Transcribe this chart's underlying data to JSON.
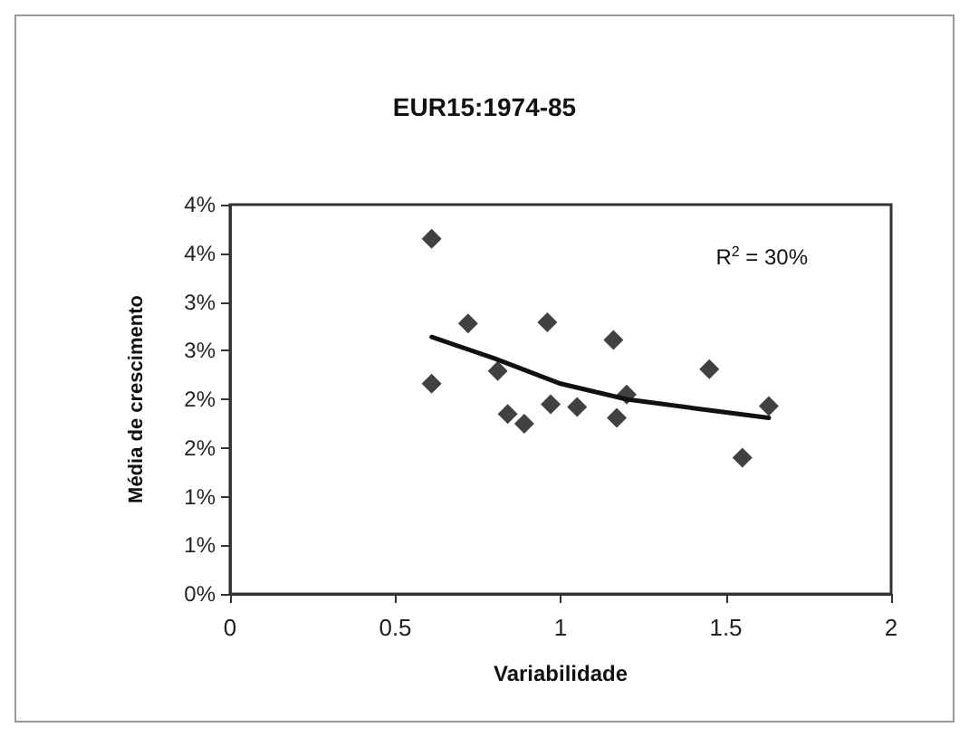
{
  "chart_data": {
    "type": "scatter",
    "title": "EUR15:1974-85",
    "xlabel": "Variabilidade",
    "ylabel": "Média de crescimento",
    "xlim": [
      0,
      2
    ],
    "xticks": [
      0,
      0.5,
      1,
      1.5,
      2
    ],
    "ylim": [
      0,
      4
    ],
    "yticks": [
      {
        "value": 0,
        "label": "0%"
      },
      {
        "value": 0.5,
        "label": "1%"
      },
      {
        "value": 1,
        "label": "1%"
      },
      {
        "value": 1.5,
        "label": "2%"
      },
      {
        "value": 2,
        "label": "2%"
      },
      {
        "value": 2.5,
        "label": "3%"
      },
      {
        "value": 3,
        "label": "3%"
      },
      {
        "value": 3.5,
        "label": "4%"
      },
      {
        "value": 4,
        "label": "4%"
      }
    ],
    "grid": false,
    "marker": "diamond",
    "annotations": [
      "R$^{2}$ = 30%"
    ],
    "series": [
      {
        "type": "scatter",
        "color": "#111111",
        "x": [
          0.61,
          0.61,
          0.72,
          0.81,
          0.84,
          0.89,
          0.96,
          0.97,
          1.05,
          1.16,
          1.17,
          1.2,
          1.45,
          1.55,
          1.63
        ],
        "values": [
          3.65,
          2.16,
          2.78,
          2.29,
          1.85,
          1.75,
          2.79,
          1.95,
          1.92,
          2.61,
          1.81,
          2.05,
          2.31,
          1.4,
          1.93
        ]
      },
      {
        "type": "line",
        "color": "#111111",
        "marker": "none",
        "x": [
          0.61,
          0.8,
          1.0,
          1.2,
          1.4,
          1.63
        ],
        "values": [
          2.64,
          2.42,
          2.16,
          2.0,
          1.91,
          1.81
        ]
      }
    ]
  }
}
